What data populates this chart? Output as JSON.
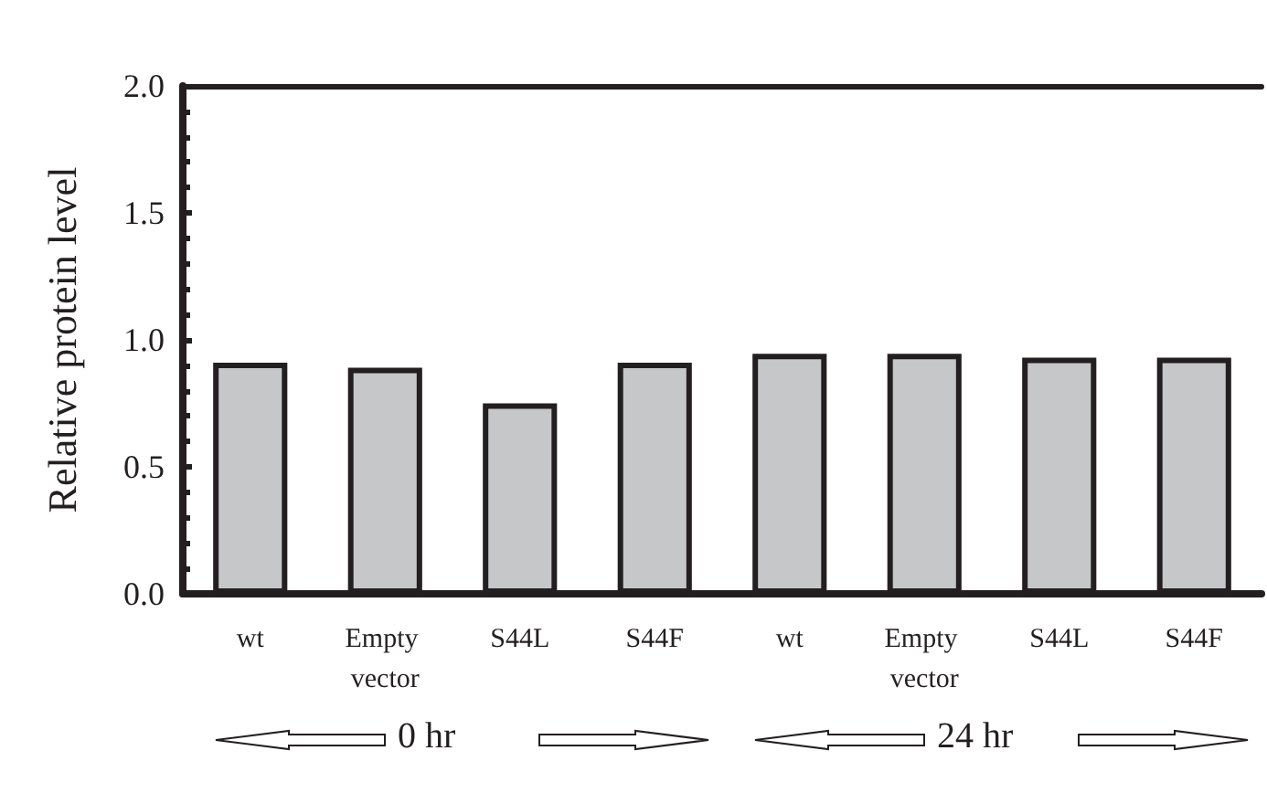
{
  "chart_data": {
    "type": "bar",
    "ylabel": "Relative protein level",
    "categories": [
      "wt",
      "Empty vector",
      "S44L",
      "S44F",
      "wt",
      "Empty vector",
      "S44L",
      "S44F"
    ],
    "values": [
      0.91,
      0.89,
      0.75,
      0.91,
      0.945,
      0.945,
      0.93,
      0.93
    ],
    "color": "#c6c7c9",
    "ylim": [
      0,
      2
    ],
    "yticks": [
      {
        "value": 0,
        "label": "0.0"
      },
      {
        "value": 0.5,
        "label": "0.5"
      },
      {
        "value": 1,
        "label": "1.0"
      },
      {
        "value": 1.5,
        "label": "1.5"
      },
      {
        "value": 2,
        "label": "2.0"
      }
    ],
    "annotations": [
      "0 hr",
      "24 hr"
    ]
  }
}
